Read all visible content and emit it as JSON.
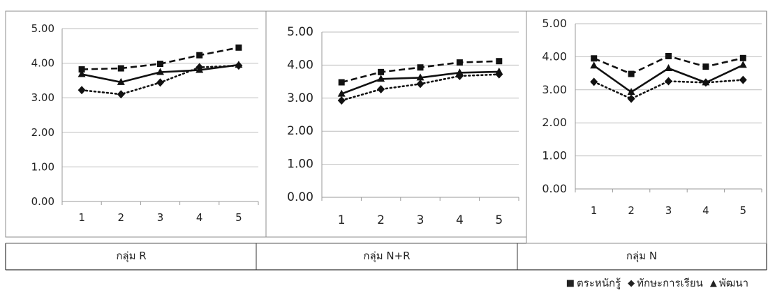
{
  "figure": {
    "groups": [
      {
        "label": "กลุ่ม R"
      },
      {
        "label": "กลุ่ม N+R"
      },
      {
        "label": "กลุ่ม N"
      }
    ]
  },
  "legend": [
    {
      "name": "ตระหนักรู้",
      "marker": "■",
      "marker_icon": "square-marker-icon"
    },
    {
      "name": "ทักษะการเรียน",
      "marker": "◆",
      "marker_icon": "diamond-marker-icon"
    },
    {
      "name": "พัฒนา",
      "marker": "▲",
      "marker_icon": "triangle-marker-icon"
    }
  ],
  "chart_data": [
    {
      "type": "line",
      "categories": [
        "1",
        "2",
        "3",
        "4",
        "5"
      ],
      "ylim": [
        0,
        5
      ],
      "yticks": [
        "0.00",
        "1.00",
        "2.00",
        "3.00",
        "4.00",
        "5.00"
      ],
      "grid": true,
      "series": [
        {
          "name": "ตระหนักรู้",
          "style": "dashed",
          "marker": "square",
          "values": [
            3.82,
            3.85,
            3.98,
            4.23,
            4.45
          ]
        },
        {
          "name": "ทักษะการเรียน",
          "style": "dotted",
          "marker": "diamond",
          "values": [
            3.22,
            3.1,
            3.44,
            3.88,
            3.93
          ]
        },
        {
          "name": "พัฒนา",
          "style": "solid",
          "marker": "triangle",
          "values": [
            3.68,
            3.45,
            3.74,
            3.8,
            3.95
          ]
        }
      ]
    },
    {
      "type": "line",
      "categories": [
        "1",
        "2",
        "3",
        "4",
        "5"
      ],
      "ylim": [
        0,
        5
      ],
      "yticks": [
        "0.00",
        "1.00",
        "2.00",
        "3.00",
        "4.00",
        "5.00"
      ],
      "grid": true,
      "series": [
        {
          "name": "ตระหนักรู้",
          "style": "dashed",
          "marker": "square",
          "values": [
            3.48,
            3.79,
            3.93,
            4.08,
            4.12
          ]
        },
        {
          "name": "ทักษะการเรียน",
          "style": "dotted",
          "marker": "diamond",
          "values": [
            2.93,
            3.27,
            3.43,
            3.67,
            3.72
          ]
        },
        {
          "name": "พัฒนา",
          "style": "solid",
          "marker": "triangle",
          "values": [
            3.13,
            3.58,
            3.62,
            3.77,
            3.8
          ]
        }
      ]
    },
    {
      "type": "line",
      "categories": [
        "1",
        "2",
        "3",
        "4",
        "5"
      ],
      "ylim": [
        0,
        5
      ],
      "yticks": [
        "0.00",
        "1.00",
        "2.00",
        "3.00",
        "4.00",
        "5.00"
      ],
      "grid": true,
      "series": [
        {
          "name": "ตระหนักรู้",
          "style": "dashed",
          "marker": "square",
          "values": [
            3.95,
            3.48,
            4.02,
            3.7,
            3.96
          ]
        },
        {
          "name": "ทักษะการเรียน",
          "style": "dotted",
          "marker": "diamond",
          "values": [
            3.24,
            2.73,
            3.26,
            3.22,
            3.3
          ]
        },
        {
          "name": "พัฒนา",
          "style": "solid",
          "marker": "triangle",
          "values": [
            3.73,
            2.93,
            3.65,
            3.22,
            3.75
          ]
        }
      ]
    }
  ]
}
